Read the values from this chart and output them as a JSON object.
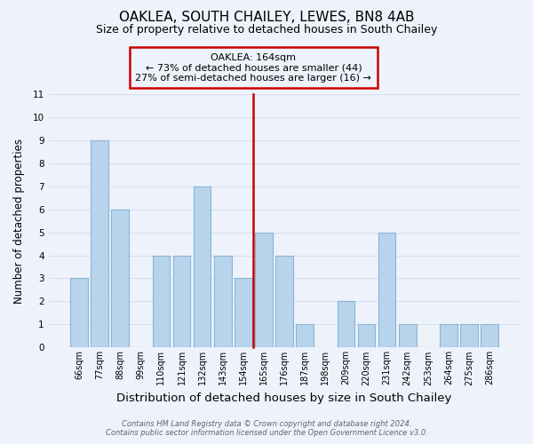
{
  "title": "OAKLEA, SOUTH CHAILEY, LEWES, BN8 4AB",
  "subtitle": "Size of property relative to detached houses in South Chailey",
  "xlabel": "Distribution of detached houses by size in South Chailey",
  "ylabel": "Number of detached properties",
  "categories": [
    "66sqm",
    "77sqm",
    "88sqm",
    "99sqm",
    "110sqm",
    "121sqm",
    "132sqm",
    "143sqm",
    "154sqm",
    "165sqm",
    "176sqm",
    "187sqm",
    "198sqm",
    "209sqm",
    "220sqm",
    "231sqm",
    "242sqm",
    "253sqm",
    "264sqm",
    "275sqm",
    "286sqm"
  ],
  "values": [
    3,
    9,
    6,
    0,
    4,
    4,
    7,
    4,
    3,
    5,
    4,
    1,
    0,
    2,
    1,
    5,
    1,
    0,
    1,
    1,
    1
  ],
  "bar_color": "#b8d4ec",
  "bar_edge_color": "#8ab4d4",
  "marker_line_color": "#cc0000",
  "annotation_text": "OAKLEA: 164sqm\n← 73% of detached houses are smaller (44)\n27% of semi-detached houses are larger (16) →",
  "annotation_box_edge_color": "#cc0000",
  "ylim": [
    0,
    11
  ],
  "yticks": [
    0,
    1,
    2,
    3,
    4,
    5,
    6,
    7,
    8,
    9,
    10,
    11
  ],
  "footer_line1": "Contains HM Land Registry data © Crown copyright and database right 2024.",
  "footer_line2": "Contains public sector information licensed under the Open Government Licence v3.0.",
  "background_color": "#eef2fb",
  "grid_color": "#d8dff0",
  "title_fontsize": 11,
  "subtitle_fontsize": 9,
  "xlabel_fontsize": 9.5,
  "ylabel_fontsize": 8.5,
  "annot_fontsize": 8,
  "tick_fontsize": 7
}
